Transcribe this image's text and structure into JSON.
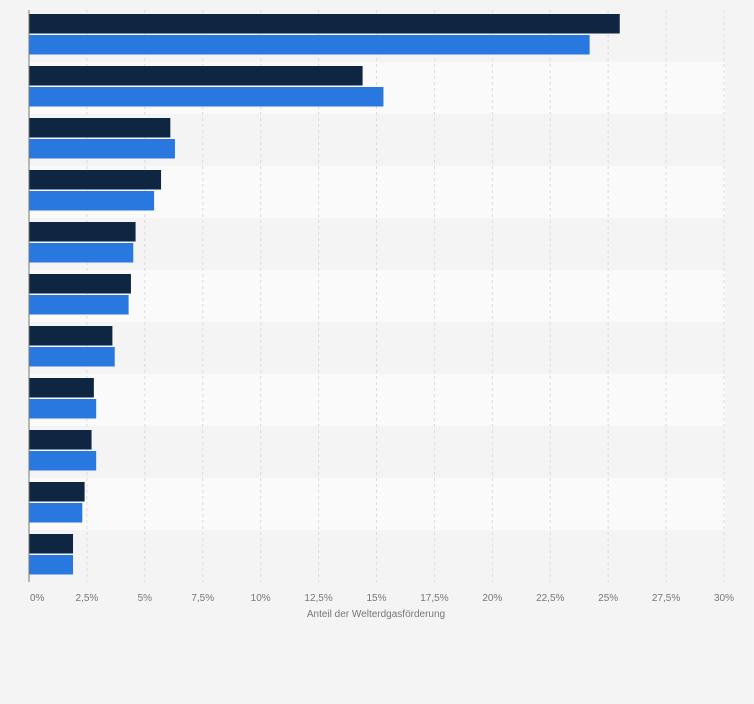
{
  "chart_data": {
    "type": "bar",
    "orientation": "horizontal",
    "title": "",
    "xlabel": "Anteil der Welterdgasförderung",
    "ylabel": "",
    "xlim": [
      0,
      30
    ],
    "x_ticks": [
      "0%",
      "2,5%",
      "5%",
      "7,5%",
      "10%",
      "12,5%",
      "15%",
      "17,5%",
      "20%",
      "22,5%",
      "25%",
      "27,5%",
      "30%"
    ],
    "x_tick_values": [
      0,
      2.5,
      5,
      7.5,
      10,
      12.5,
      15,
      17.5,
      20,
      22.5,
      25,
      27.5,
      30
    ],
    "grid": true,
    "categories": [
      "",
      "",
      "",
      "",
      "",
      "",
      "",
      "",
      "",
      "",
      ""
    ],
    "series": [
      {
        "values": [
          25.5,
          14.4,
          6.1,
          5.7,
          4.6,
          4.4,
          3.6,
          2.8,
          2.7,
          2.4,
          1.9
        ],
        "color": "#0f2642"
      },
      {
        "values": [
          24.2,
          15.3,
          6.3,
          5.4,
          4.5,
          4.3,
          3.7,
          2.9,
          2.9,
          2.3,
          1.9
        ],
        "color": "#2878e0"
      }
    ],
    "colors": {
      "background": "#f4f4f4",
      "band_light": "#fafafa",
      "gridline": "#dcdcdc",
      "axis": "#777777",
      "tick_text": "#777777"
    }
  }
}
